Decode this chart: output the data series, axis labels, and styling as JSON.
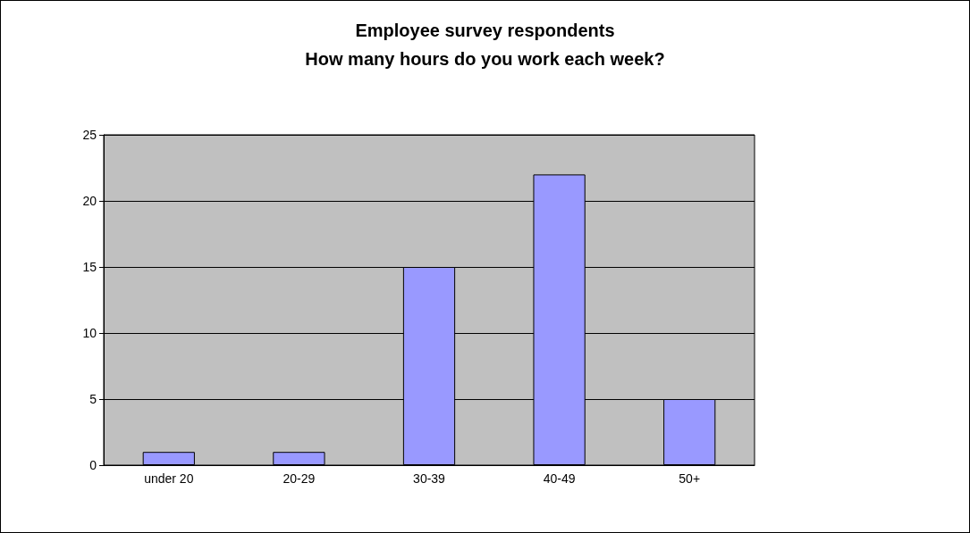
{
  "chart_data": {
    "type": "bar",
    "title": "Employee survey respondents\nHow many hours do you work each week?",
    "categories": [
      "under 20",
      "20-29",
      "30-39",
      "40-49",
      "50+"
    ],
    "values": [
      1,
      1,
      15,
      22,
      5
    ],
    "color": "#9999ff",
    "ylim": [
      0,
      25
    ],
    "yticks": [
      0,
      5,
      10,
      15,
      20,
      25
    ],
    "grid": "y"
  }
}
